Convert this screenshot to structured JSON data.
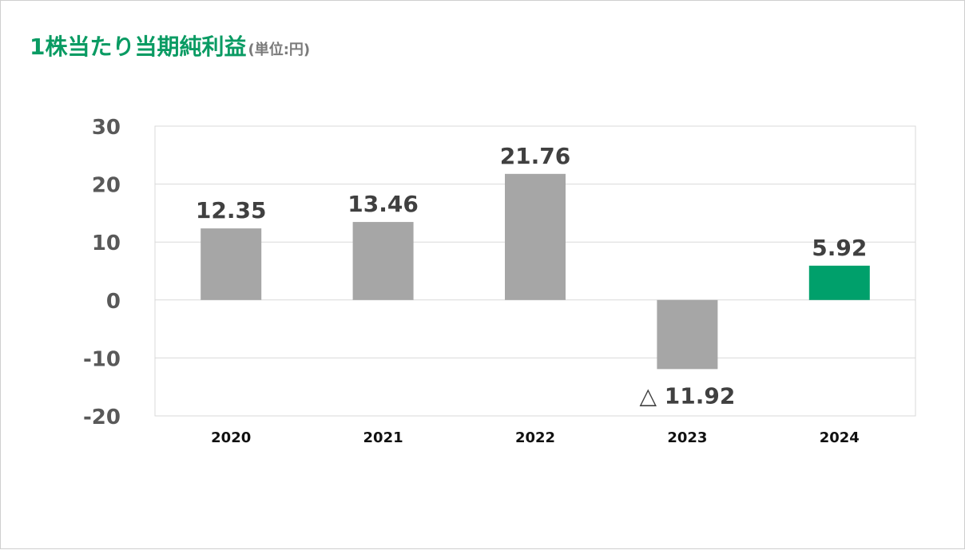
{
  "title": {
    "main": "1株当たり当期純利益",
    "unit": "(単位:円)"
  },
  "colors": {
    "title": "#0a9b63",
    "unit": "#7a7a7a",
    "bar_default": "#a6a6a6",
    "bar_highlight": "#00a06b",
    "grid": "#d9d9d9",
    "tick_label": "#595959",
    "category_label": "#111111",
    "data_label": "#404040"
  },
  "chart_data": {
    "type": "bar",
    "categories": [
      "2020",
      "2021",
      "2022",
      "2023",
      "2024"
    ],
    "values": [
      12.35,
      13.46,
      21.76,
      -11.92,
      5.92
    ],
    "data_labels": [
      "12.35",
      "13.46",
      "21.76",
      "△ 11.92",
      "5.92"
    ],
    "highlight_category": "2024",
    "title": "1株当たり当期純利益",
    "unit": "(単位:円)",
    "xlabel": "",
    "ylabel": "",
    "ylim": [
      -20,
      30
    ],
    "y_ticks": [
      30,
      20,
      10,
      0,
      -10,
      -20
    ],
    "y_tick_labels": [
      "30",
      "20",
      "10",
      "0",
      "-10",
      "-20"
    ],
    "grid": true,
    "legend": "none"
  }
}
